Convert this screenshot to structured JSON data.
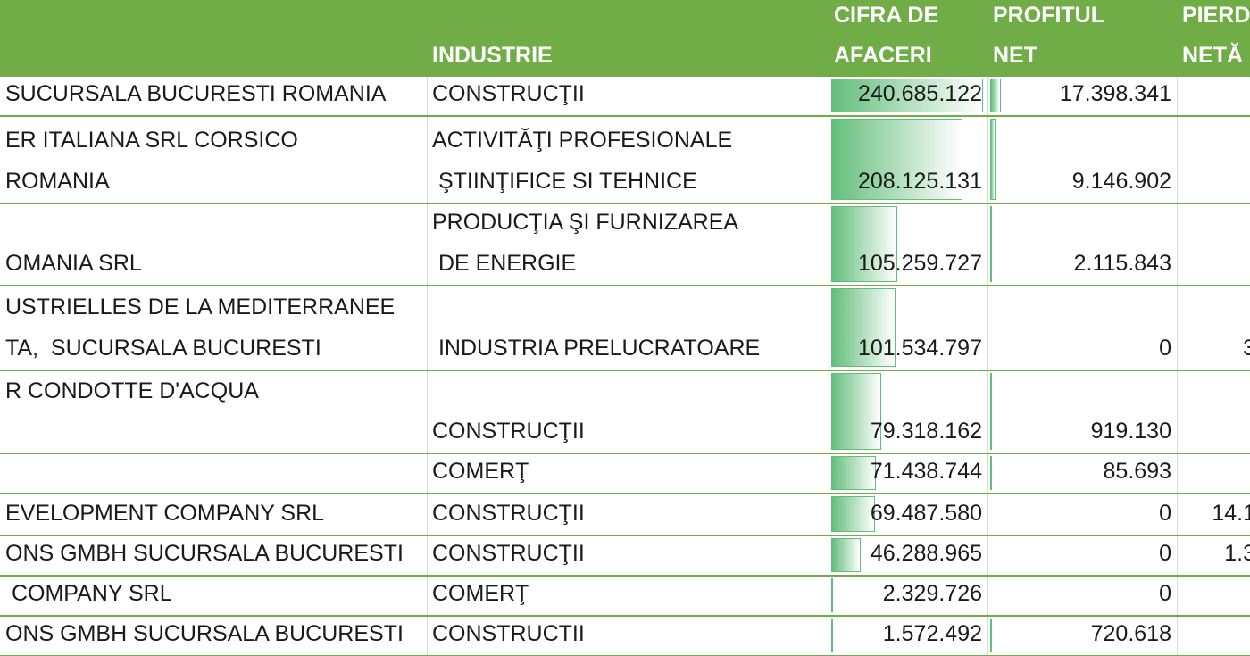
{
  "header": {
    "columns": [
      "INDUSTRIE",
      "CIFRA DE\nAFACERI",
      "PROFITUL\nNET",
      "PIERD\nNETĂ"
    ]
  },
  "table": {
    "rows": [
      {
        "company": "SUCURSALA BUCURESTI ROMANIA",
        "industry": "CONSTRUCŢII",
        "revenue": "240.685.122",
        "profit": "17.398.341"
      },
      {
        "company": "ER ITALIANA SRL CORSICO\nROMANIA",
        "industry": "ACTIVITĂŢI PROFESIONALE\n ŞTIINŢIFICE SI TEHNICE",
        "revenue": "208.125.131",
        "profit": "9.146.902"
      },
      {
        "company": "OMANIA SRL",
        "industry": "PRODUCŢIA ŞI FURNIZAREA\n DE ENERGIE",
        "revenue": "105.259.727",
        "profit": "2.115.843"
      },
      {
        "company": "USTRIELLES DE LA MEDITERRANEE\nTA,  SUCURSALA BUCURESTI",
        "industry": " INDUSTRIA PRELUCRATOARE",
        "revenue": "101.534.797",
        "profit": "0",
        "loss": "3"
      },
      {
        "company": "R CONDOTTE D'ACQUA",
        "industry": "CONSTRUCŢII",
        "revenue": "79.318.162",
        "profit": "919.130"
      },
      {
        "industry": "COMERŢ",
        "revenue": "71.438.744",
        "profit": "85.693"
      },
      {
        "company": "EVELOPMENT COMPANY SRL",
        "industry": "CONSTRUCŢII",
        "revenue": "69.487.580",
        "profit": "0",
        "loss": "14.1"
      },
      {
        "company": "ONS GMBH SUCURSALA BUCURESTI",
        "industry": "CONSTRUCŢII",
        "revenue": "46.288.965",
        "profit": "0",
        "loss": "1.3"
      },
      {
        "company": " COMPANY SRL",
        "industry": "COMERŢ",
        "revenue": "2.329.726",
        "profit": "0"
      },
      {
        "company": "ONS GMBH SUCURSALA BUCURESTI",
        "industry": "CONSTRUCTII",
        "revenue": "1.572.492",
        "profit": "720.618"
      }
    ]
  }
}
